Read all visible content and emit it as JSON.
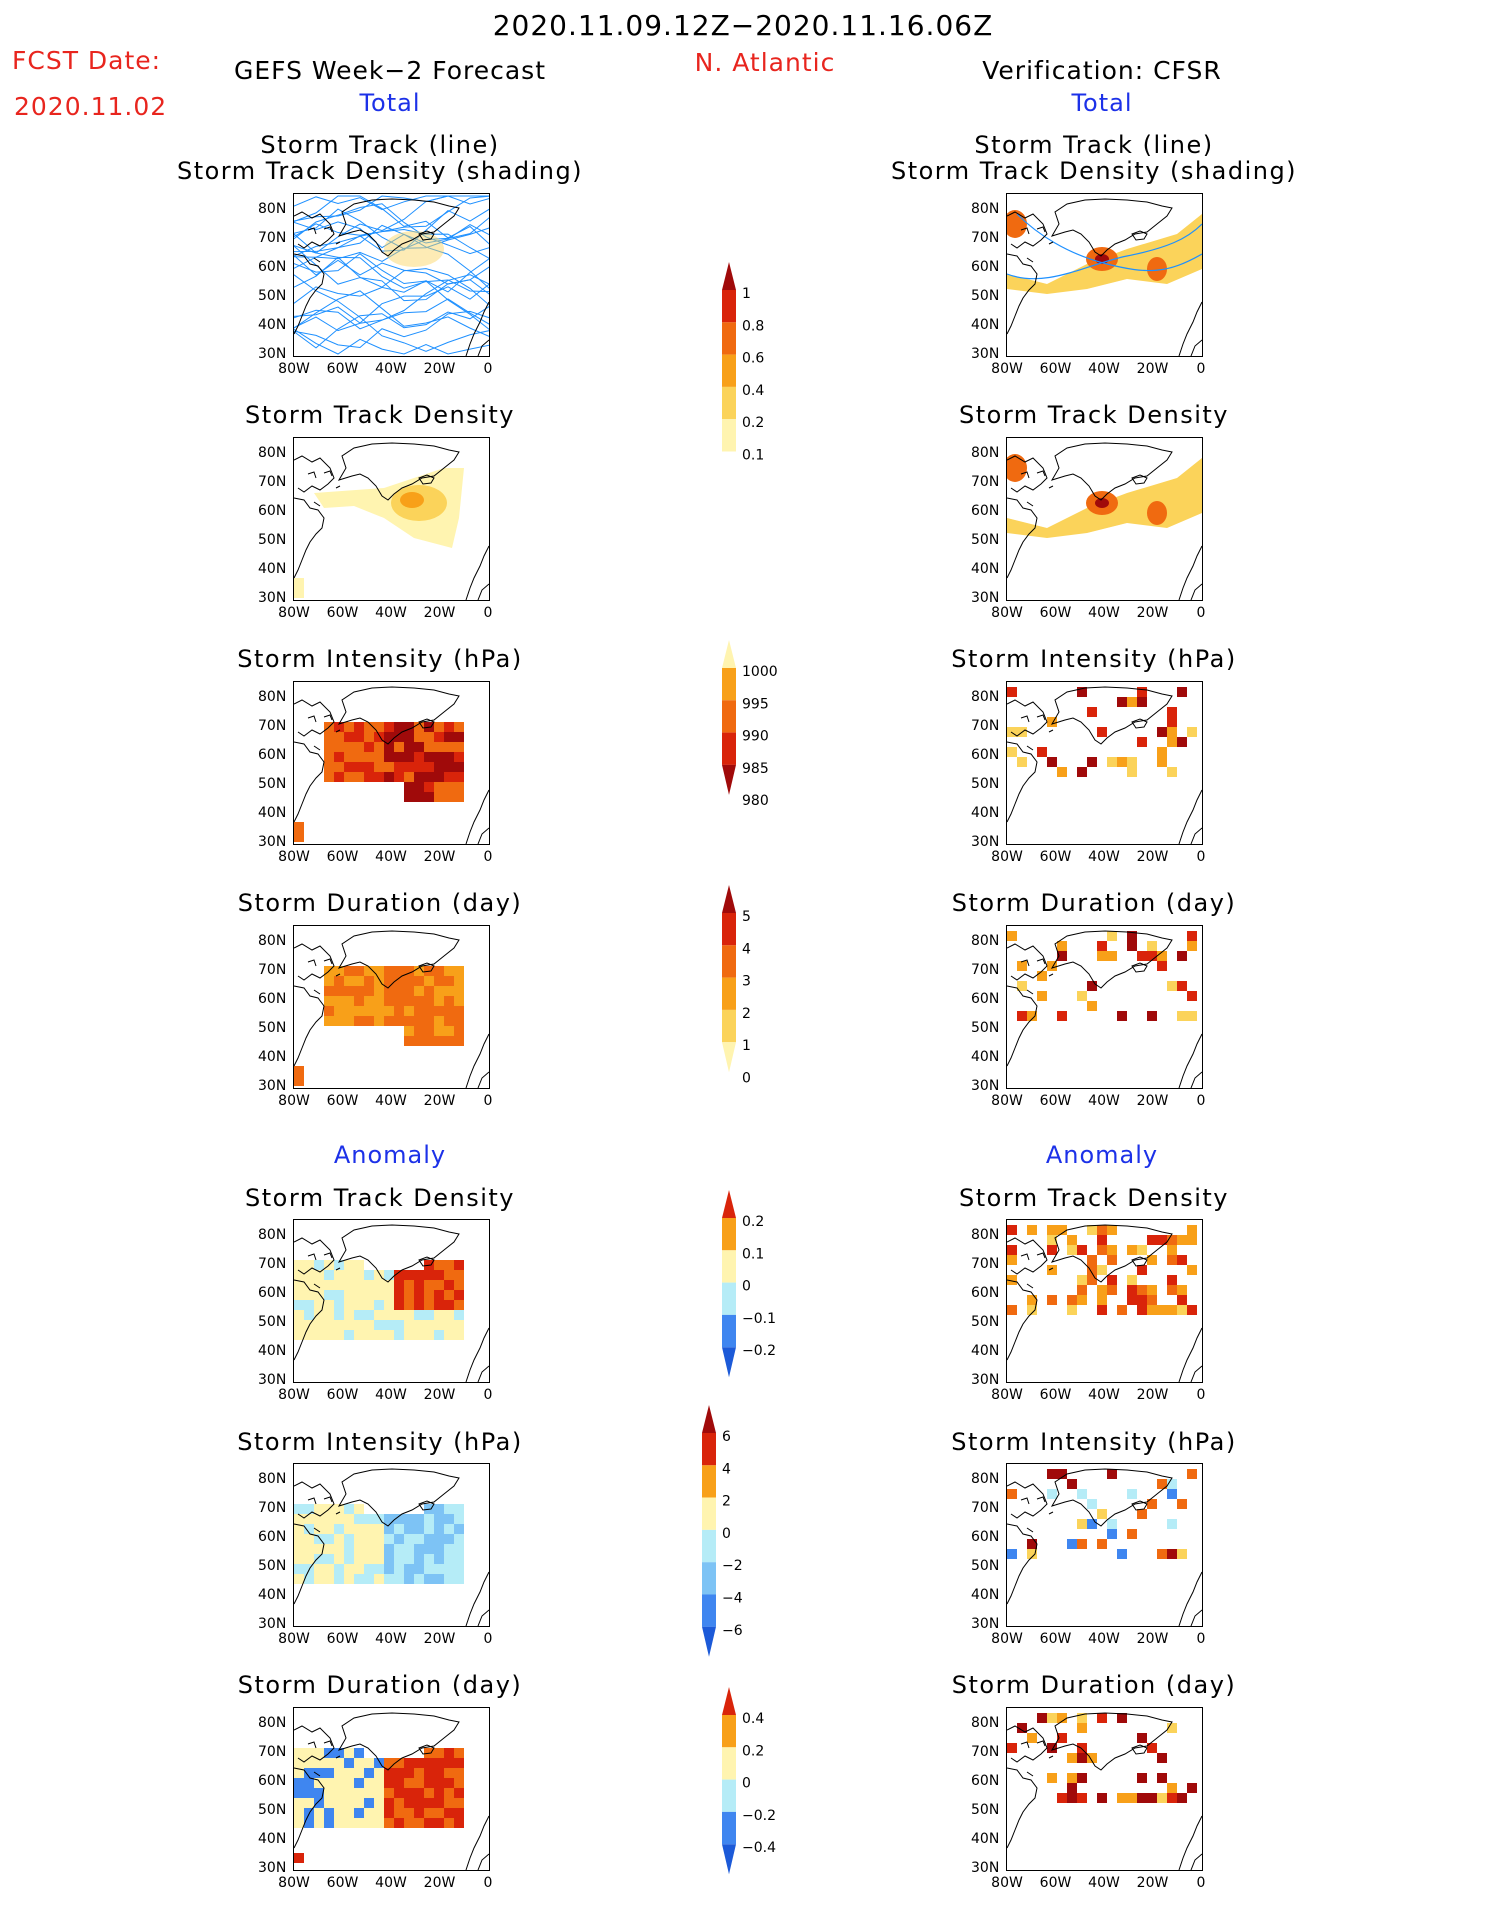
{
  "header": {
    "period": "2020.11.09.12Z−2020.11.16.06Z",
    "fcst_label": "FCST Date:",
    "fcst_date": "2020.11.02",
    "region": "N. Atlantic",
    "left_title": "GEFS Week−2 Forecast",
    "right_title": "Verification: CFSR",
    "total": "Total",
    "anomaly": "Anomaly"
  },
  "panel_titles": {
    "track1": "Storm Track (line)",
    "track2": "Storm Track Density (shading)",
    "density": "Storm Track Density",
    "intensity": "Storm Intensity (hPa)",
    "duration": "Storm Duration (day)"
  },
  "axes": {
    "lat": [
      "80N",
      "70N",
      "60N",
      "50N",
      "40N",
      "30N"
    ],
    "lon": [
      "80W",
      "60W",
      "40W",
      "20W",
      "0"
    ]
  },
  "colorbars": {
    "density_total": [
      "1",
      "0.8",
      "0.6",
      "0.4",
      "0.2",
      "0.1"
    ],
    "intensity_total": [
      "1000",
      "995",
      "990",
      "985",
      "980"
    ],
    "duration_total": [
      "5",
      "4",
      "3",
      "2",
      "1",
      "0"
    ],
    "density_anom": [
      "0.2",
      "0.1",
      "0",
      "−0.1",
      "−0.2"
    ],
    "intensity_anom": [
      "6",
      "4",
      "2",
      "0",
      "−2",
      "−4",
      "−6"
    ],
    "duration_anom": [
      "0.4",
      "0.2",
      "0",
      "−0.2",
      "−0.4"
    ]
  },
  "colors": {
    "title_red": "#e8251e",
    "label_blue": "#1c31e8",
    "track_line": "#1e90ff",
    "warm": [
      "#fff4b0",
      "#fbd35a",
      "#f8a019",
      "#f06a10",
      "#d9240a",
      "#a00a0a"
    ],
    "cool": [
      "#b5ecf7",
      "#7dc3f5",
      "#3f86f0",
      "#1c5ad8"
    ]
  }
}
